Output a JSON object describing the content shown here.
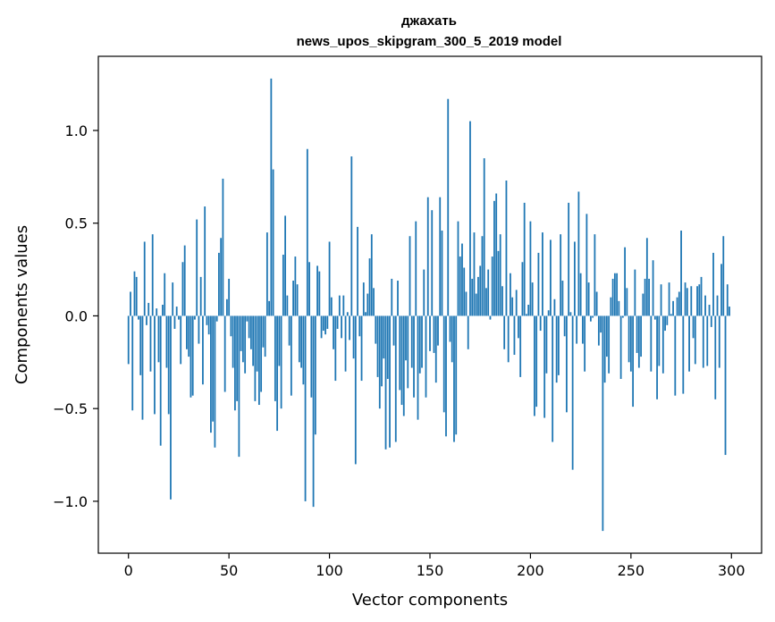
{
  "chart_data": {
    "type": "bar",
    "title": "джахать",
    "subtitle": "news_upos_skipgram_300_5_2019 model",
    "xlabel": "Vector components",
    "ylabel": "Components values",
    "xlim": [
      -15,
      315
    ],
    "ylim": [
      -1.28,
      1.4
    ],
    "xticks": [
      0,
      50,
      100,
      150,
      200,
      250,
      300
    ],
    "xtick_labels": [
      "0",
      "50",
      "100",
      "150",
      "200",
      "250",
      "300"
    ],
    "yticks": [
      -1.0,
      -0.5,
      0.0,
      0.5,
      1.0
    ],
    "ytick_labels": [
      "−1.0",
      "−0.5",
      "0.0",
      "0.5",
      "1.0"
    ],
    "bar_color": "#1f77b4",
    "grid": false,
    "values": [
      -0.26,
      0.13,
      -0.51,
      0.24,
      0.21,
      -0.02,
      -0.32,
      -0.56,
      0.4,
      -0.05,
      0.07,
      -0.3,
      0.44,
      -0.53,
      0.04,
      -0.25,
      -0.7,
      0.06,
      0.23,
      -0.28,
      -0.53,
      -0.99,
      0.18,
      -0.07,
      0.05,
      -0.02,
      -0.26,
      0.29,
      0.38,
      -0.18,
      -0.22,
      -0.44,
      -0.43,
      -0.02,
      0.52,
      -0.15,
      0.21,
      -0.37,
      0.59,
      -0.05,
      -0.1,
      -0.63,
      -0.57,
      -0.71,
      -0.03,
      0.34,
      0.42,
      0.74,
      -0.41,
      0.09,
      0.2,
      -0.11,
      -0.28,
      -0.51,
      -0.46,
      -0.76,
      -0.19,
      -0.25,
      -0.31,
      -0.03,
      -0.12,
      -0.18,
      -0.27,
      -0.46,
      -0.3,
      -0.48,
      -0.41,
      -0.17,
      -0.22,
      0.45,
      0.08,
      1.28,
      0.79,
      -0.46,
      -0.62,
      -0.27,
      -0.5,
      0.33,
      0.54,
      0.11,
      -0.16,
      -0.43,
      0.19,
      0.32,
      0.17,
      -0.25,
      -0.28,
      -0.37,
      -1.0,
      0.9,
      0.29,
      -0.44,
      -1.03,
      -0.64,
      0.27,
      0.24,
      -0.12,
      -0.08,
      -0.1,
      -0.07,
      0.4,
      0.1,
      -0.18,
      -0.35,
      -0.07,
      0.11,
      -0.12,
      0.11,
      -0.3,
      0.02,
      -0.13,
      0.86,
      -0.23,
      -0.8,
      0.48,
      -0.11,
      -0.35,
      0.18,
      0.02,
      0.12,
      0.31,
      0.44,
      0.15,
      -0.15,
      -0.33,
      -0.5,
      -0.38,
      -0.23,
      -0.72,
      -0.34,
      -0.71,
      0.2,
      -0.16,
      -0.68,
      0.19,
      -0.4,
      -0.48,
      -0.54,
      -0.24,
      -0.39,
      0.43,
      -0.28,
      -0.44,
      0.51,
      -0.56,
      -0.31,
      -0.28,
      0.25,
      -0.44,
      0.64,
      -0.19,
      0.57,
      -0.2,
      -0.36,
      -0.16,
      0.64,
      0.46,
      -0.52,
      -0.65,
      1.17,
      -0.14,
      -0.25,
      -0.68,
      -0.64,
      0.51,
      0.32,
      0.39,
      0.26,
      0.13,
      -0.18,
      1.05,
      0.2,
      0.45,
      0.12,
      0.21,
      0.27,
      0.43,
      0.85,
      0.15,
      0.25,
      -0.02,
      0.32,
      0.62,
      0.66,
      0.35,
      0.44,
      0.16,
      -0.18,
      0.73,
      -0.25,
      0.23,
      0.1,
      -0.21,
      0.14,
      -0.12,
      -0.33,
      0.29,
      0.61,
      0.01,
      0.06,
      0.51,
      0.18,
      -0.54,
      -0.49,
      0.34,
      -0.08,
      0.45,
      -0.55,
      -0.31,
      0.03,
      0.41,
      -0.68,
      0.09,
      -0.36,
      -0.32,
      0.44,
      0.19,
      -0.11,
      -0.52,
      0.61,
      0.02,
      -0.83,
      0.4,
      -0.15,
      0.67,
      0.23,
      -0.15,
      -0.3,
      0.55,
      0.18,
      -0.03,
      -0.01,
      0.44,
      0.13,
      -0.16,
      -0.09,
      -1.16,
      -0.36,
      -0.22,
      -0.31,
      0.1,
      0.2,
      0.23,
      0.23,
      0.08,
      -0.34,
      -0.01,
      0.37,
      0.15,
      -0.25,
      -0.3,
      -0.49,
      0.25,
      -0.2,
      -0.28,
      -0.22,
      0.12,
      0.2,
      0.42,
      0.2,
      -0.3,
      0.3,
      -0.02,
      -0.45,
      -0.27,
      0.17,
      -0.31,
      -0.08,
      -0.05,
      0.18,
      0.01,
      0.08,
      -0.43,
      0.1,
      0.13,
      0.46,
      -0.42,
      0.18,
      0.15,
      -0.3,
      0.16,
      -0.12,
      -0.26,
      0.16,
      0.17,
      0.21,
      -0.28,
      0.11,
      -0.27,
      0.06,
      -0.06,
      0.34,
      -0.45,
      0.11,
      -0.28,
      0.28,
      0.43,
      -0.75,
      0.17,
      0.05
    ]
  }
}
